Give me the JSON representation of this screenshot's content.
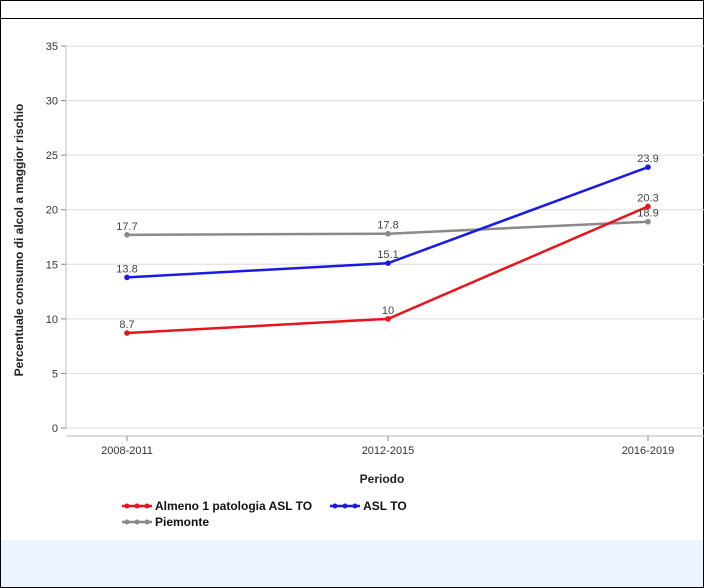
{
  "chart_data": {
    "type": "line",
    "xlabel": "Periodo",
    "ylabel": "Percentuale consumo di alcol a maggior rischio",
    "categories": [
      "2008-2011",
      "2012-2015",
      "2016-2019"
    ],
    "ylim": [
      0,
      35
    ],
    "yticks": [
      0,
      5,
      10,
      15,
      20,
      25,
      30,
      35
    ],
    "grid": true,
    "legend_position": "bottom",
    "series": [
      {
        "name": "Almeno 1 patologia ASL TO",
        "color": "#e8141b",
        "values": [
          8.7,
          10,
          20.3
        ],
        "labels": [
          "8.7",
          "10",
          "20.3"
        ]
      },
      {
        "name": "ASL TO",
        "color": "#1a1ae6",
        "values": [
          13.8,
          15.1,
          23.9
        ],
        "labels": [
          "13.8",
          "15.1",
          "23.9"
        ]
      },
      {
        "name": "Piemonte",
        "color": "#8a8a8a",
        "values": [
          17.7,
          17.8,
          18.9
        ],
        "labels": [
          "17.7",
          "17.8",
          "18.9"
        ]
      }
    ]
  }
}
